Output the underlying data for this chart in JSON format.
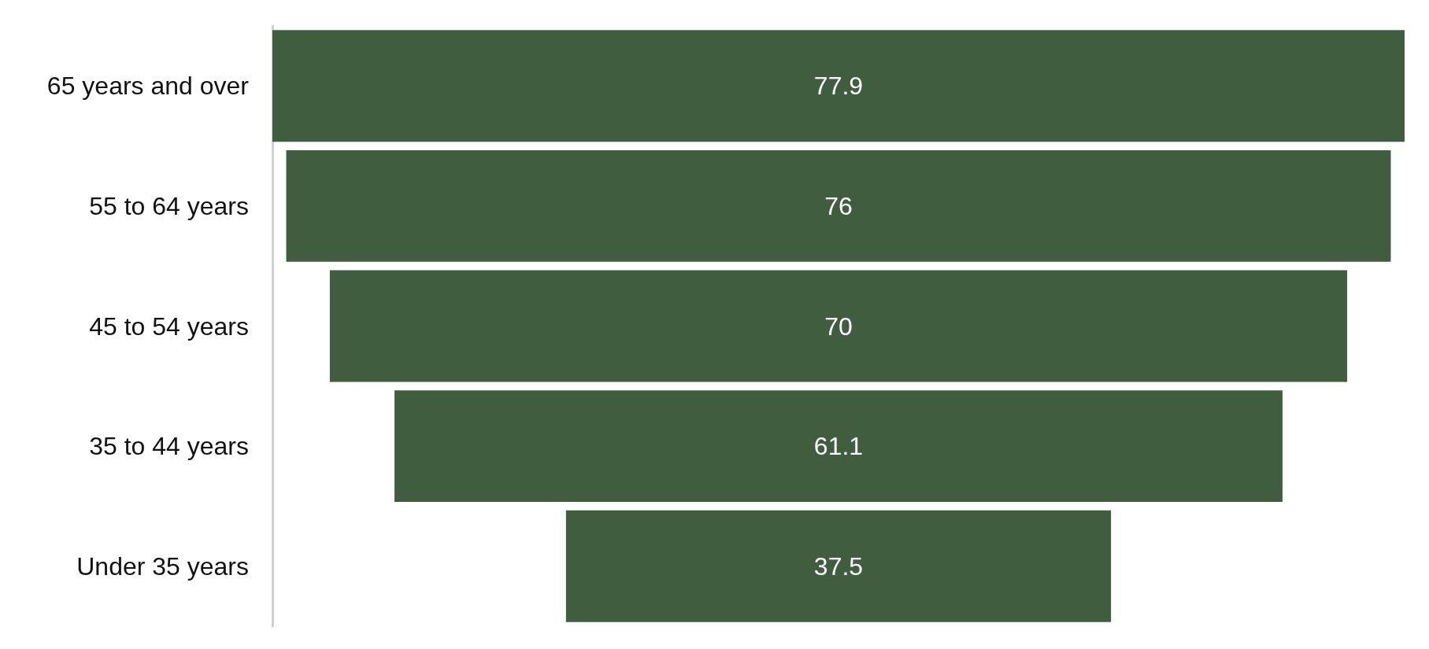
{
  "chart_data": {
    "type": "other",
    "categories": [
      "65 years and over",
      "55 to 64 years",
      "45 to 54 years",
      "35 to 44 years",
      "Under 35 years"
    ],
    "values": [
      77.9,
      76,
      70,
      61.1,
      37.5
    ],
    "color": "#405e3f",
    "data_labels": true
  }
}
